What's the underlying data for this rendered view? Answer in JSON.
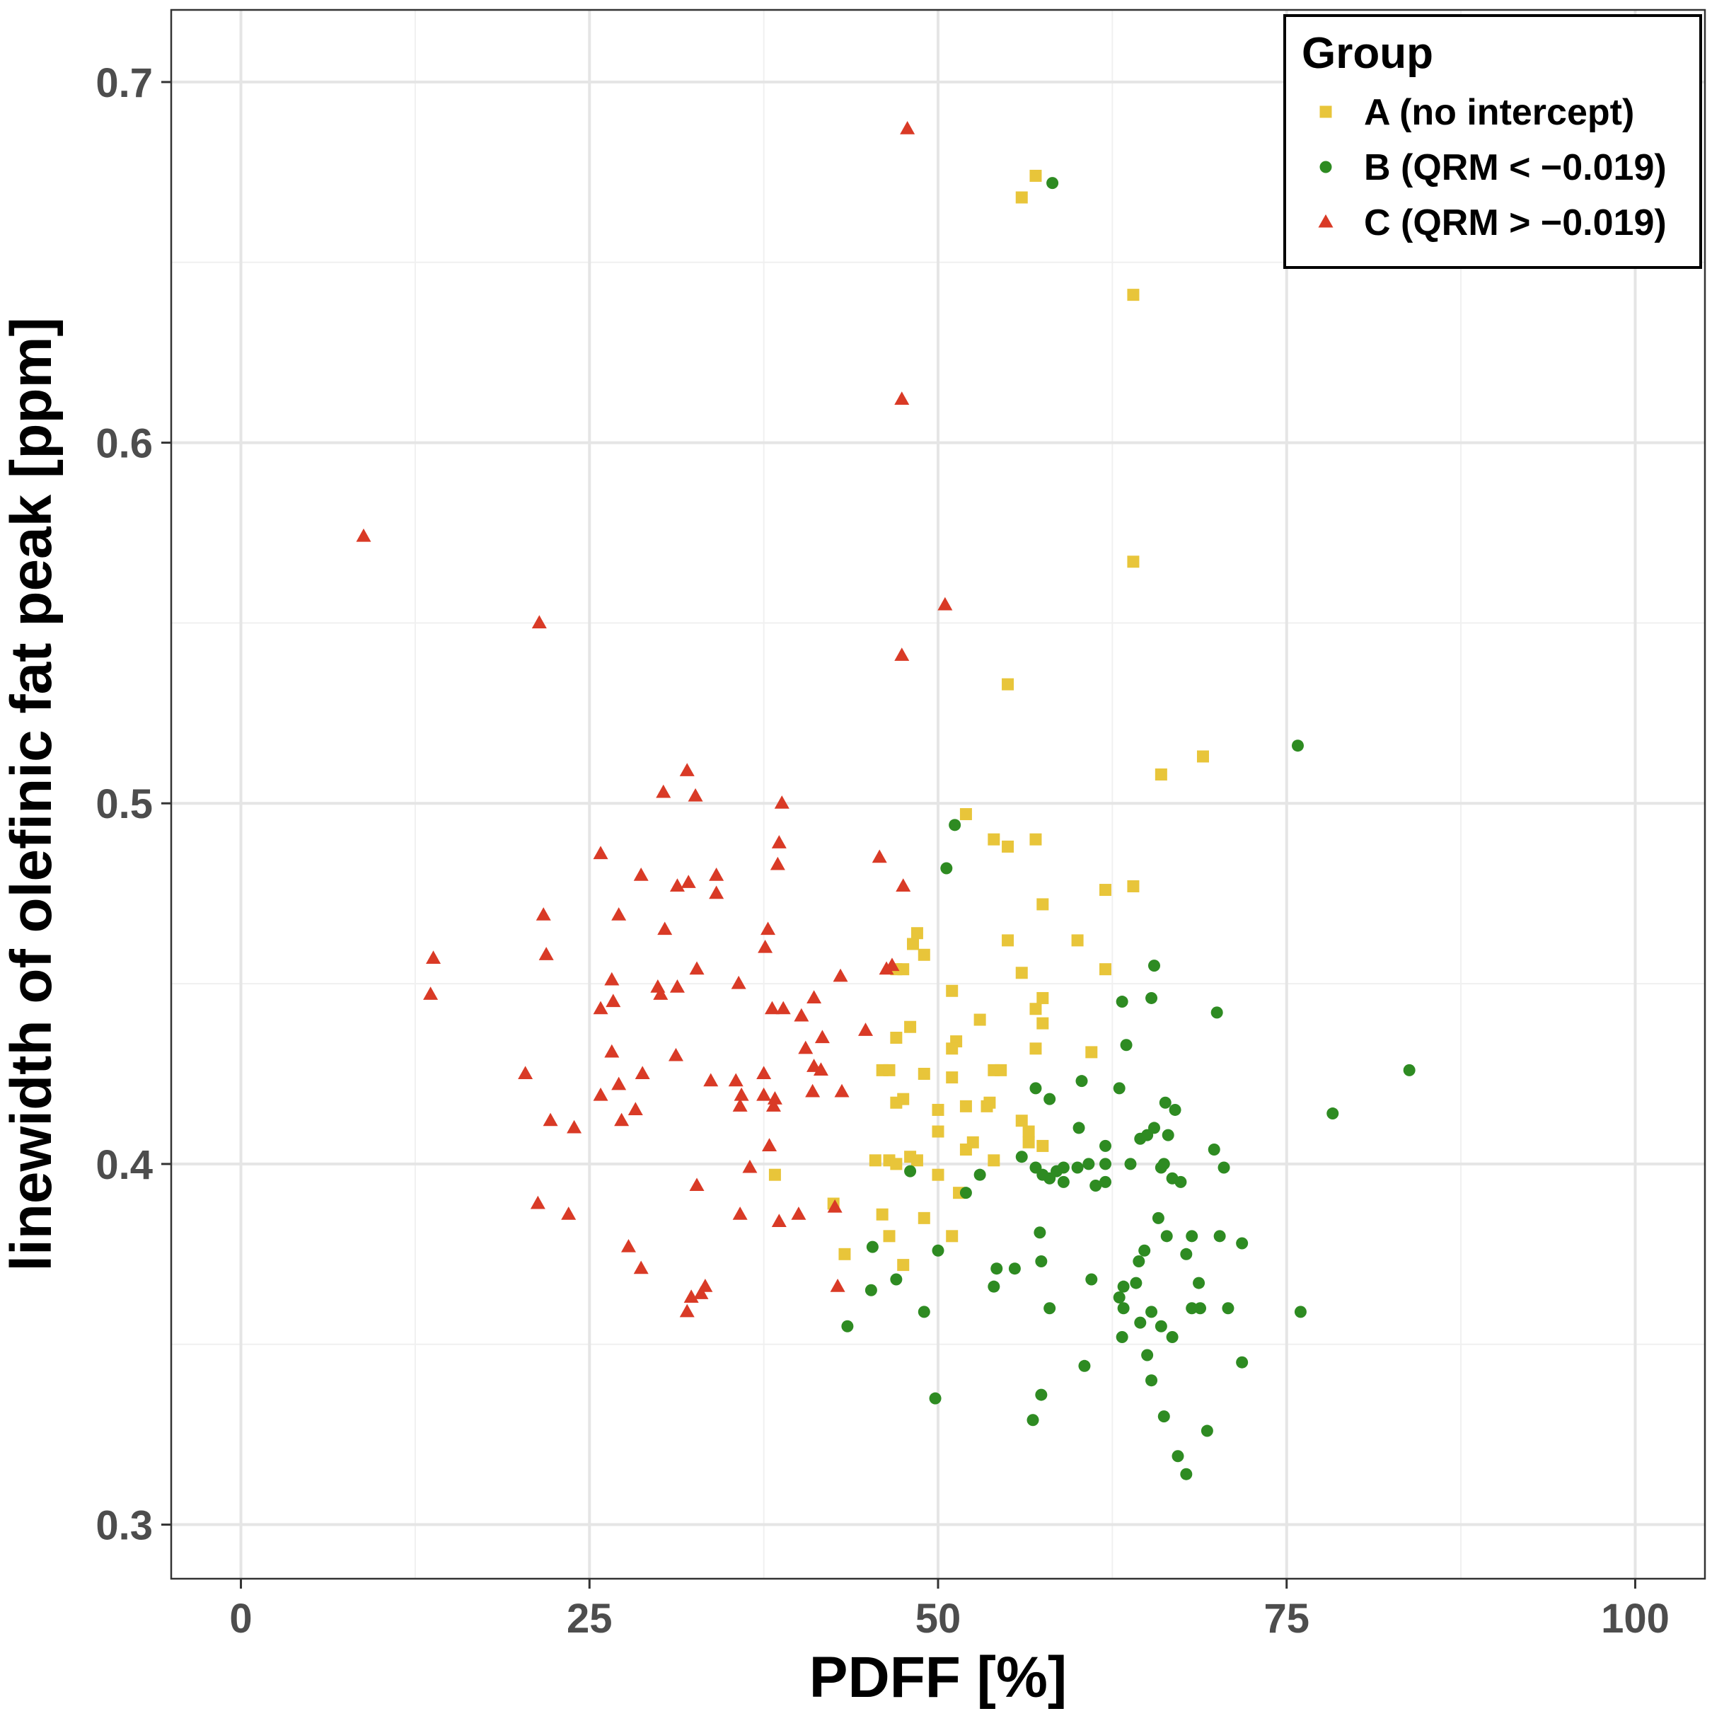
{
  "chart_data": {
    "type": "scatter",
    "title": "",
    "xlabel": "PDFF [%]",
    "ylabel": "linewidth of olefinic fat peak [ppm]",
    "xlim": [
      -5,
      105
    ],
    "ylim": [
      0.285,
      0.72
    ],
    "x_ticks": [
      0,
      25,
      50,
      75,
      100
    ],
    "x_tick_labels": [
      "0",
      "25",
      "50",
      "75",
      "100"
    ],
    "y_ticks": [
      0.3,
      0.4,
      0.5,
      0.6,
      0.7
    ],
    "y_tick_labels": [
      "0.3",
      "0.4",
      "0.5",
      "0.6",
      "0.7"
    ],
    "grid": true,
    "legend": {
      "title": "Group",
      "position": "top-right"
    },
    "series": [
      {
        "name": "A (no intercept)",
        "marker": "square",
        "color": "#e8c53a",
        "points": [
          [
            56,
            0.668
          ],
          [
            57,
            0.674
          ],
          [
            64,
            0.641
          ],
          [
            64,
            0.567
          ],
          [
            55,
            0.533
          ],
          [
            69,
            0.513
          ],
          [
            66,
            0.508
          ],
          [
            52,
            0.497
          ],
          [
            54,
            0.49
          ],
          [
            57,
            0.49
          ],
          [
            55,
            0.488
          ],
          [
            62,
            0.476
          ],
          [
            64,
            0.477
          ],
          [
            57.5,
            0.472
          ],
          [
            48.5,
            0.464
          ],
          [
            48.2,
            0.461
          ],
          [
            55,
            0.462
          ],
          [
            60,
            0.462
          ],
          [
            49,
            0.458
          ],
          [
            47,
            0.454
          ],
          [
            47.5,
            0.454
          ],
          [
            56,
            0.453
          ],
          [
            62,
            0.454
          ],
          [
            51,
            0.448
          ],
          [
            57.5,
            0.446
          ],
          [
            57,
            0.443
          ],
          [
            53,
            0.44
          ],
          [
            57.5,
            0.439
          ],
          [
            48,
            0.438
          ],
          [
            47,
            0.435
          ],
          [
            51.3,
            0.434
          ],
          [
            51,
            0.432
          ],
          [
            57,
            0.432
          ],
          [
            61,
            0.431
          ],
          [
            46,
            0.426
          ],
          [
            46.5,
            0.426
          ],
          [
            54,
            0.426
          ],
          [
            54.5,
            0.426
          ],
          [
            49,
            0.425
          ],
          [
            51,
            0.424
          ],
          [
            47,
            0.417
          ],
          [
            47.5,
            0.418
          ],
          [
            50,
            0.415
          ],
          [
            52,
            0.416
          ],
          [
            53.5,
            0.416
          ],
          [
            53.7,
            0.417
          ],
          [
            56,
            0.412
          ],
          [
            50,
            0.409
          ],
          [
            56.5,
            0.409
          ],
          [
            56.5,
            0.406
          ],
          [
            57.5,
            0.405
          ],
          [
            52.5,
            0.406
          ],
          [
            52,
            0.404
          ],
          [
            48,
            0.402
          ],
          [
            48.5,
            0.401
          ],
          [
            45.5,
            0.401
          ],
          [
            46.5,
            0.401
          ],
          [
            47,
            0.4
          ],
          [
            54,
            0.401
          ],
          [
            38.3,
            0.397
          ],
          [
            50,
            0.397
          ],
          [
            51.5,
            0.392
          ],
          [
            42.5,
            0.389
          ],
          [
            46,
            0.386
          ],
          [
            49,
            0.385
          ],
          [
            46.5,
            0.38
          ],
          [
            51,
            0.38
          ],
          [
            47.5,
            0.372
          ],
          [
            43.3,
            0.375
          ]
        ]
      },
      {
        "name": "B (QRM < −0.019)",
        "marker": "circle",
        "color": "#2e8b22",
        "points": [
          [
            58.2,
            0.672
          ],
          [
            75.8,
            0.516
          ],
          [
            51.2,
            0.494
          ],
          [
            50.6,
            0.482
          ],
          [
            65.5,
            0.455
          ],
          [
            63.2,
            0.445
          ],
          [
            65.3,
            0.446
          ],
          [
            70,
            0.442
          ],
          [
            63.5,
            0.433
          ],
          [
            83.8,
            0.426
          ],
          [
            60.3,
            0.423
          ],
          [
            57,
            0.421
          ],
          [
            63,
            0.421
          ],
          [
            58,
            0.418
          ],
          [
            66.3,
            0.417
          ],
          [
            67,
            0.415
          ],
          [
            78.3,
            0.414
          ],
          [
            60.1,
            0.41
          ],
          [
            65.5,
            0.41
          ],
          [
            66.5,
            0.408
          ],
          [
            64.5,
            0.407
          ],
          [
            65,
            0.408
          ],
          [
            62,
            0.405
          ],
          [
            69.8,
            0.404
          ],
          [
            56,
            0.402
          ],
          [
            57,
            0.399
          ],
          [
            58.5,
            0.398
          ],
          [
            59,
            0.399
          ],
          [
            60,
            0.399
          ],
          [
            60.8,
            0.4
          ],
          [
            62,
            0.4
          ],
          [
            63.8,
            0.4
          ],
          [
            66,
            0.399
          ],
          [
            66.2,
            0.4
          ],
          [
            70.5,
            0.399
          ],
          [
            48,
            0.398
          ],
          [
            53,
            0.397
          ],
          [
            57.5,
            0.397
          ],
          [
            58,
            0.396
          ],
          [
            59,
            0.395
          ],
          [
            61.3,
            0.394
          ],
          [
            62,
            0.395
          ],
          [
            66.8,
            0.396
          ],
          [
            67.4,
            0.395
          ],
          [
            52,
            0.392
          ],
          [
            65.8,
            0.385
          ],
          [
            57.3,
            0.381
          ],
          [
            66.4,
            0.38
          ],
          [
            68.2,
            0.38
          ],
          [
            70.2,
            0.38
          ],
          [
            71.8,
            0.378
          ],
          [
            45.3,
            0.377
          ],
          [
            50,
            0.376
          ],
          [
            64.8,
            0.376
          ],
          [
            67.8,
            0.375
          ],
          [
            54.2,
            0.371
          ],
          [
            55.5,
            0.371
          ],
          [
            57.4,
            0.373
          ],
          [
            64.4,
            0.373
          ],
          [
            47,
            0.368
          ],
          [
            61,
            0.368
          ],
          [
            68.7,
            0.367
          ],
          [
            45.2,
            0.365
          ],
          [
            54,
            0.366
          ],
          [
            63.3,
            0.366
          ],
          [
            64.2,
            0.367
          ],
          [
            63,
            0.363
          ],
          [
            49,
            0.359
          ],
          [
            58,
            0.36
          ],
          [
            63.3,
            0.36
          ],
          [
            65.3,
            0.359
          ],
          [
            68.2,
            0.36
          ],
          [
            68.8,
            0.36
          ],
          [
            70.8,
            0.36
          ],
          [
            76,
            0.359
          ],
          [
            64.5,
            0.356
          ],
          [
            66,
            0.355
          ],
          [
            43.5,
            0.355
          ],
          [
            63.2,
            0.352
          ],
          [
            66.8,
            0.352
          ],
          [
            65,
            0.347
          ],
          [
            71.8,
            0.345
          ],
          [
            60.5,
            0.344
          ],
          [
            65.3,
            0.34
          ],
          [
            49.8,
            0.335
          ],
          [
            57.4,
            0.336
          ],
          [
            56.8,
            0.329
          ],
          [
            66.2,
            0.33
          ],
          [
            69.3,
            0.326
          ],
          [
            67.2,
            0.319
          ],
          [
            67.8,
            0.314
          ]
        ]
      },
      {
        "name": "C (QRM > −0.019)",
        "marker": "triangle",
        "color": "#d93a26",
        "points": [
          [
            47.8,
            0.687
          ],
          [
            47.4,
            0.612
          ],
          [
            8.8,
            0.574
          ],
          [
            21.4,
            0.55
          ],
          [
            50.5,
            0.555
          ],
          [
            47.4,
            0.541
          ],
          [
            32,
            0.509
          ],
          [
            30.3,
            0.503
          ],
          [
            32.6,
            0.502
          ],
          [
            38.8,
            0.5
          ],
          [
            38.6,
            0.489
          ],
          [
            25.8,
            0.486
          ],
          [
            45.8,
            0.485
          ],
          [
            38.5,
            0.483
          ],
          [
            28.7,
            0.48
          ],
          [
            34.1,
            0.48
          ],
          [
            31.3,
            0.477
          ],
          [
            32.1,
            0.478
          ],
          [
            47.5,
            0.477
          ],
          [
            34.1,
            0.475
          ],
          [
            21.7,
            0.469
          ],
          [
            27.1,
            0.469
          ],
          [
            30.4,
            0.465
          ],
          [
            37.8,
            0.465
          ],
          [
            37.6,
            0.46
          ],
          [
            13.8,
            0.457
          ],
          [
            21.9,
            0.458
          ],
          [
            46.7,
            0.455
          ],
          [
            46.3,
            0.454
          ],
          [
            32.7,
            0.454
          ],
          [
            43,
            0.452
          ],
          [
            26.6,
            0.451
          ],
          [
            35.7,
            0.45
          ],
          [
            29.9,
            0.449
          ],
          [
            30.1,
            0.447
          ],
          [
            31.3,
            0.449
          ],
          [
            13.6,
            0.447
          ],
          [
            41.1,
            0.446
          ],
          [
            26.7,
            0.445
          ],
          [
            25.8,
            0.443
          ],
          [
            38.1,
            0.443
          ],
          [
            38.9,
            0.443
          ],
          [
            40.2,
            0.441
          ],
          [
            44.8,
            0.437
          ],
          [
            41.7,
            0.435
          ],
          [
            40.5,
            0.432
          ],
          [
            26.6,
            0.431
          ],
          [
            31.2,
            0.43
          ],
          [
            20.4,
            0.425
          ],
          [
            28.8,
            0.425
          ],
          [
            37.5,
            0.425
          ],
          [
            41.1,
            0.427
          ],
          [
            41.6,
            0.426
          ],
          [
            33.7,
            0.423
          ],
          [
            35.5,
            0.423
          ],
          [
            27.1,
            0.422
          ],
          [
            43.1,
            0.42
          ],
          [
            41,
            0.42
          ],
          [
            25.8,
            0.419
          ],
          [
            35.9,
            0.419
          ],
          [
            37.5,
            0.419
          ],
          [
            38.3,
            0.418
          ],
          [
            35.8,
            0.416
          ],
          [
            38.2,
            0.416
          ],
          [
            28.3,
            0.415
          ],
          [
            22.2,
            0.412
          ],
          [
            27.3,
            0.412
          ],
          [
            23.9,
            0.41
          ],
          [
            37.9,
            0.405
          ],
          [
            36.5,
            0.399
          ],
          [
            32.7,
            0.394
          ],
          [
            21.3,
            0.389
          ],
          [
            42.6,
            0.388
          ],
          [
            23.5,
            0.386
          ],
          [
            35.8,
            0.386
          ],
          [
            40,
            0.386
          ],
          [
            38.6,
            0.384
          ],
          [
            27.8,
            0.377
          ],
          [
            28.7,
            0.371
          ],
          [
            42.8,
            0.366
          ],
          [
            33.3,
            0.366
          ],
          [
            32.3,
            0.363
          ],
          [
            33,
            0.364
          ],
          [
            32,
            0.359
          ]
        ]
      }
    ]
  }
}
